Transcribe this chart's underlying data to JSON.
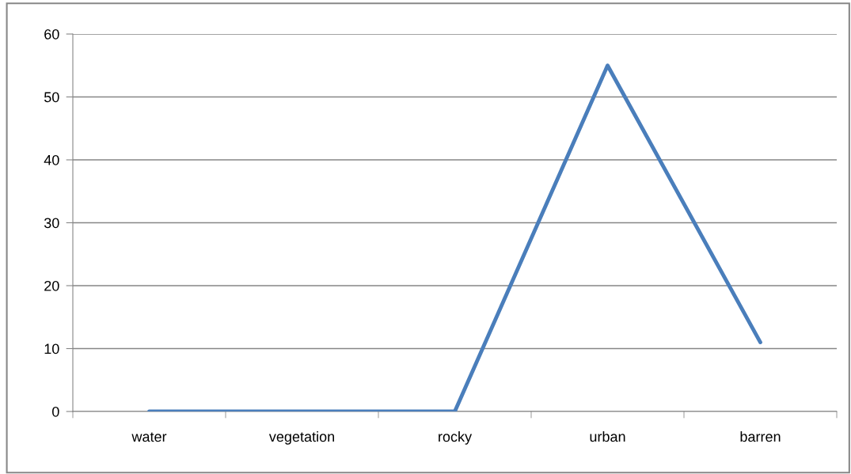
{
  "chart_data": {
    "type": "line",
    "categories": [
      "water",
      "vegetation",
      "rocky",
      "urban",
      "barren"
    ],
    "series": [
      {
        "color": "#4a7ebb",
        "values": [
          0,
          0,
          0,
          55,
          11
        ]
      }
    ],
    "ylim": [
      0,
      60
    ],
    "yticks": [
      0,
      10,
      20,
      30,
      40,
      50,
      60
    ],
    "grid": "y",
    "marker": "none",
    "line_style": "solid"
  }
}
